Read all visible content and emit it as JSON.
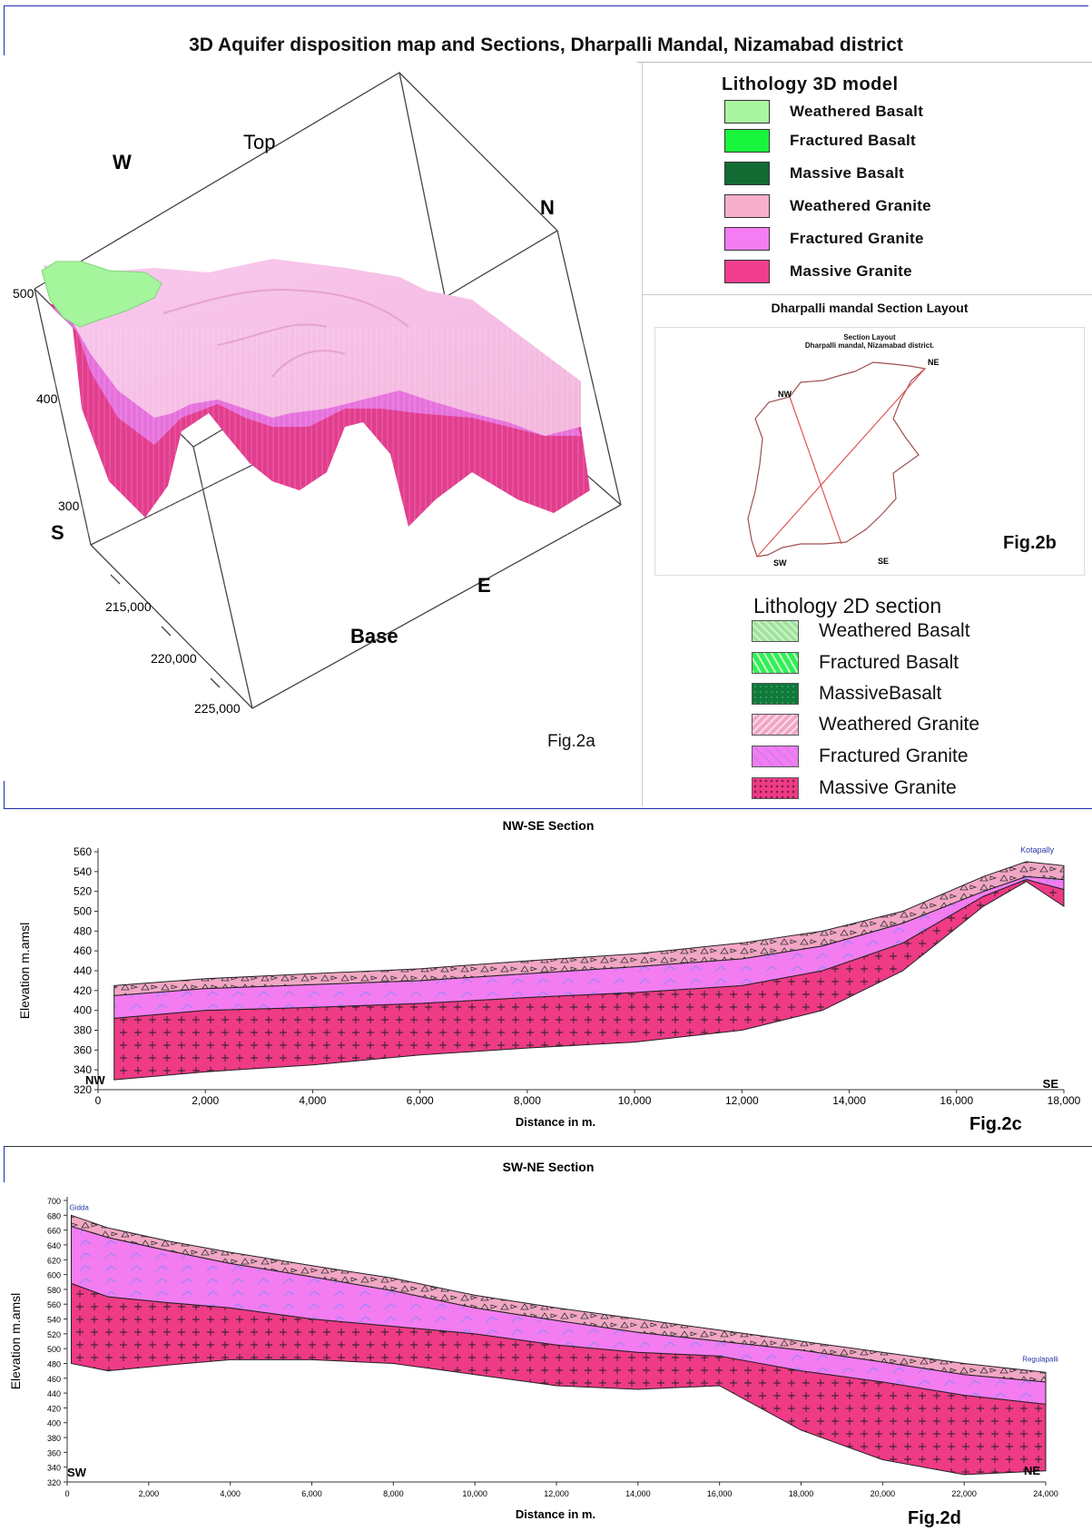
{
  "main_title": "3D Aquifer disposition map and Sections, Dharpalli  Mandal, Nizamabad district",
  "fig2a": {
    "label": "Fig.2a",
    "dir_labels": {
      "top": "Top",
      "w": "W",
      "n": "N",
      "s": "S",
      "e": "E",
      "base": "Base"
    },
    "elev_ticks": [
      "500",
      "400",
      "300"
    ],
    "easting_ticks": [
      "215,000",
      "220,000",
      "225,000"
    ]
  },
  "legend3d": {
    "title": "Lithology 3D model",
    "items": [
      {
        "label": "Weathered Basalt",
        "color": "#a9f5a0"
      },
      {
        "label": "Fractured Basalt",
        "color": "#19f43c"
      },
      {
        "label": "Massive Basalt",
        "color": "#116b33"
      },
      {
        "label": "Weathered Granite",
        "color": "#f7b0cc"
      },
      {
        "label": "Fractured Granite",
        "color": "#f57df3"
      },
      {
        "label": "Massive Granite",
        "color": "#f23d8f"
      }
    ]
  },
  "layout": {
    "heading": "Dharpalli mandal Section Layout",
    "inner_title_1": "Section Layout",
    "inner_title_2": "Dharpalli mandal, Nizamabad district.",
    "points": {
      "ne": "NE",
      "nw": "NW",
      "sw": "SW",
      "se": "SE"
    },
    "label": "Fig.2b"
  },
  "legend2d": {
    "title": "Lithology 2D section",
    "items": [
      {
        "label": "Weathered Basalt",
        "color": "#9fe39a"
      },
      {
        "label": "Fractured Basalt",
        "color": "#33ee55"
      },
      {
        "label": "MassiveBasalt",
        "color": "#0f7a3a"
      },
      {
        "label": "Weathered Granite",
        "color": "#f2a6c4"
      },
      {
        "label": "Fractured Granite",
        "color": "#f27cf0"
      },
      {
        "label": "Massive Granite",
        "color": "#ef3a86"
      }
    ]
  },
  "chart_data": [
    {
      "type": "area",
      "title": "NW-SE Section",
      "xlabel": "Distance in m.",
      "ylabel": "Elevation m.amsl",
      "xlim": [
        0,
        18000
      ],
      "ylim": [
        320,
        560
      ],
      "x_ticks": [
        "0",
        "2,000",
        "4,000",
        "6,000",
        "8,000",
        "10,000",
        "12,000",
        "14,000",
        "16,000",
        "18,000"
      ],
      "y_ticks": [
        "560",
        "540",
        "520",
        "500",
        "480",
        "460",
        "440",
        "420",
        "400",
        "380",
        "360",
        "340",
        "320"
      ],
      "end_labels": {
        "left": "NW",
        "right": "SE"
      },
      "place_label": "Kotapally",
      "fig_label": "Fig.2c",
      "x": [
        300,
        2000,
        4000,
        6000,
        8000,
        10000,
        12000,
        13500,
        15000,
        16500,
        17300,
        18000
      ],
      "layers": {
        "surface": [
          425,
          432,
          437,
          442,
          450,
          457,
          468,
          480,
          500,
          535,
          550,
          546
        ],
        "weathered_bottom": [
          415,
          422,
          426,
          430,
          437,
          444,
          452,
          465,
          488,
          520,
          535,
          532
        ],
        "fractured_bottom": [
          392,
          400,
          403,
          407,
          413,
          418,
          425,
          440,
          468,
          515,
          532,
          522
        ],
        "base": [
          330,
          338,
          345,
          355,
          362,
          368,
          380,
          400,
          440,
          505,
          530,
          505
        ]
      }
    },
    {
      "type": "area",
      "title": "SW-NE Section",
      "xlabel": "Distance in m.",
      "ylabel": "Elevation m.amsl",
      "xlim": [
        0,
        24000
      ],
      "ylim": [
        320,
        700
      ],
      "x_ticks": [
        "0",
        "2,000",
        "4,000",
        "6,000",
        "8,000",
        "10,000",
        "12,000",
        "14,000",
        "16,000",
        "18,000",
        "20,000",
        "22,000",
        "24,000"
      ],
      "y_ticks": [
        "700",
        "680",
        "660",
        "640",
        "620",
        "600",
        "580",
        "560",
        "540",
        "520",
        "500",
        "480",
        "460",
        "440",
        "420",
        "400",
        "380",
        "360",
        "340",
        "320"
      ],
      "end_labels": {
        "left": "SW",
        "right": "NE"
      },
      "place_label_left": "Gidda",
      "place_label_right": "Regulapalli",
      "fig_label": "Fig.2d",
      "x": [
        100,
        1000,
        2500,
        4000,
        6000,
        8000,
        10000,
        12000,
        14000,
        16000,
        18000,
        20000,
        22000,
        24000
      ],
      "layers": {
        "surface": [
          680,
          663,
          645,
          630,
          612,
          595,
          572,
          555,
          540,
          525,
          510,
          495,
          480,
          468
        ],
        "weathered_bottom": [
          665,
          650,
          632,
          615,
          597,
          578,
          555,
          538,
          522,
          510,
          498,
          482,
          465,
          455
        ],
        "fractured_bottom": [
          588,
          570,
          562,
          555,
          540,
          530,
          520,
          505,
          495,
          490,
          470,
          455,
          437,
          425
        ],
        "base": [
          480,
          470,
          478,
          485,
          485,
          480,
          465,
          450,
          445,
          450,
          390,
          350,
          330,
          335
        ]
      }
    }
  ]
}
